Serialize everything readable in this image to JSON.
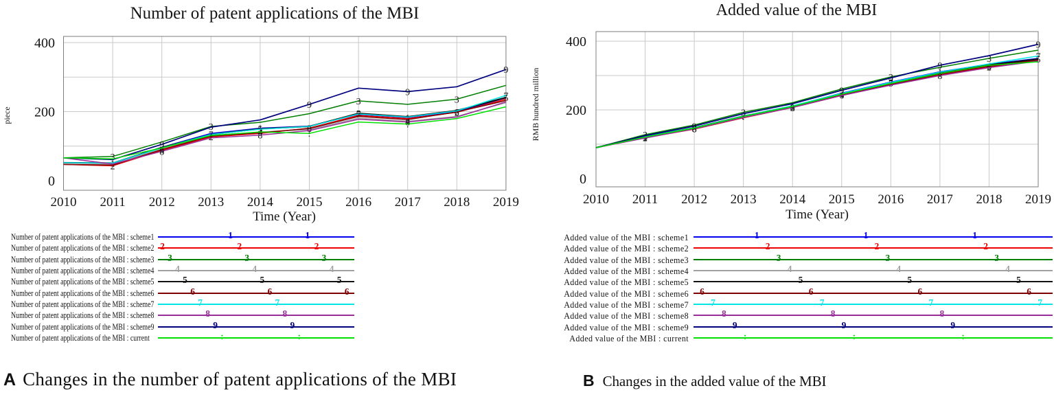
{
  "figure": {
    "captions": [
      {
        "letter": "A",
        "text": "Changes in the number of patent applications of the MBI"
      },
      {
        "letter": "B",
        "text": "Changes in the added value of the MBI"
      }
    ]
  },
  "chart_data": [
    {
      "id": "A",
      "type": "line",
      "title": "Number of patent applications of the MBI",
      "xlabel": "Time (Year)",
      "ylabel": "piece",
      "x": [
        2010,
        2011,
        2012,
        2013,
        2014,
        2015,
        2016,
        2017,
        2018,
        2019
      ],
      "ylim": [
        0,
        400
      ],
      "yticks": [
        0,
        200,
        400
      ],
      "grid": true,
      "legend_position": "below-left",
      "series": [
        {
          "name": "Number of patent applications of the MBI : scheme1",
          "marker": "1",
          "color": "#0000ee",
          "values": [
            52,
            51,
            97,
            137,
            152,
            158,
            192,
            183,
            200,
            240
          ],
          "marker_years": [
            2011,
            2014,
            2017
          ]
        },
        {
          "name": "Number of patent applications of the MBI : scheme2",
          "marker": "2",
          "color": "#ee0000",
          "values": [
            47,
            43,
            88,
            127,
            137,
            152,
            189,
            180,
            198,
            236
          ],
          "marker_years": [
            2011,
            2013,
            2015,
            2018
          ]
        },
        {
          "name": "Number of patent applications of the MBI : scheme3",
          "marker": "3",
          "color": "#007f00",
          "values": [
            66,
            70,
            112,
            157,
            169,
            194,
            231,
            221,
            236,
            276
          ],
          "marker_years": [
            2011,
            2013,
            2016,
            2018
          ]
        },
        {
          "name": "Number of patent applications of the MBI : scheme4",
          "marker": "4",
          "color": "#a0a0a0",
          "values": [
            47,
            47,
            92,
            130,
            141,
            148,
            181,
            172,
            186,
            226
          ],
          "marker_years": [
            2012,
            2014,
            2017
          ]
        },
        {
          "name": "Number of patent applications of the MBI : scheme5",
          "marker": "5",
          "color": "#111111",
          "values": [
            52,
            51,
            96,
            134,
            150,
            157,
            195,
            185,
            203,
            241
          ],
          "marker_years": [
            2014,
            2016,
            2019
          ]
        },
        {
          "name": "Number of patent applications of the MBI : scheme6",
          "marker": "6",
          "color": "#7f0000",
          "values": [
            47,
            45,
            90,
            129,
            139,
            151,
            186,
            177,
            199,
            232
          ],
          "marker_years": [
            2012,
            2015,
            2018
          ]
        },
        {
          "name": "Number of patent applications of the MBI : scheme7",
          "marker": "7",
          "color": "#00e5e5",
          "values": [
            52,
            51,
            95,
            134,
            149,
            157,
            193,
            184,
            202,
            247
          ],
          "marker_years": [
            2013,
            2016,
            2019
          ]
        },
        {
          "name": "Number of patent applications of the MBI : scheme8",
          "marker": "8",
          "color": "#992d99",
          "values": [
            66,
            48,
            85,
            124,
            132,
            145,
            178,
            170,
            184,
            228
          ],
          "marker_years": [
            2012,
            2014,
            2017
          ]
        },
        {
          "name": "Number of patent applications of the MBI : scheme9",
          "marker": "9",
          "color": "#00007f",
          "values": [
            66,
            61,
            105,
            155,
            176,
            221,
            268,
            258,
            272,
            322
          ],
          "marker_years": [
            2012,
            2015,
            2017,
            2019
          ]
        },
        {
          "name": "Number of patent applications of the MBI : current",
          "marker": ":",
          "color": "#00e000",
          "values": [
            66,
            63,
            95,
            131,
            141,
            137,
            170,
            164,
            180,
            214
          ],
          "marker_years": [
            2013,
            2015,
            2017
          ]
        }
      ]
    },
    {
      "id": "B",
      "type": "line",
      "title": "Added value of the MBI",
      "xlabel": "Time (Year)",
      "ylabel": "RMB hundred million",
      "x": [
        2010,
        2011,
        2012,
        2013,
        2014,
        2015,
        2016,
        2017,
        2018,
        2019
      ],
      "ylim": [
        0,
        400
      ],
      "yticks": [
        0,
        200,
        400
      ],
      "grid": true,
      "legend_position": "below-left",
      "series": [
        {
          "name": "Added value of the MBI : scheme1",
          "marker": "1",
          "color": "#0000ee",
          "values": [
            90,
            121,
            147,
            181,
            211,
            249,
            281,
            311,
            333,
            350
          ],
          "marker_years": [
            2011,
            2014,
            2017
          ]
        },
        {
          "name": "Added value of the MBI : scheme2",
          "marker": "2",
          "color": "#ee0000",
          "values": [
            90,
            119,
            144,
            177,
            207,
            242,
            273,
            302,
            325,
            346
          ],
          "marker_years": [
            2011,
            2014,
            2018
          ]
        },
        {
          "name": "Added value of the MBI : scheme3",
          "marker": "3",
          "color": "#007f00",
          "values": [
            90,
            128,
            156,
            193,
            221,
            261,
            296,
            324,
            350,
            374
          ],
          "marker_years": [
            2011,
            2013,
            2016,
            2018
          ]
        },
        {
          "name": "Added value of the MBI : scheme4",
          "marker": "4",
          "color": "#a0a0a0",
          "values": [
            90,
            121,
            146,
            180,
            209,
            245,
            276,
            305,
            329,
            344
          ],
          "marker_years": [
            2011,
            2015,
            2018
          ]
        },
        {
          "name": "Added value of the MBI : scheme5",
          "marker": "5",
          "color": "#111111",
          "values": [
            90,
            122,
            148,
            182,
            211,
            247,
            278,
            308,
            331,
            348
          ],
          "marker_years": [
            2014,
            2016,
            2019
          ]
        },
        {
          "name": "Added value of the MBI : scheme6",
          "marker": "6",
          "color": "#7f0000",
          "values": [
            90,
            120,
            145,
            178,
            208,
            243,
            274,
            304,
            327,
            345
          ],
          "marker_years": [
            2012,
            2015,
            2018
          ]
        },
        {
          "name": "Added value of the MBI : scheme7",
          "marker": "7",
          "color": "#00e5e5",
          "values": [
            90,
            122,
            148,
            182,
            212,
            248,
            280,
            310,
            334,
            357
          ],
          "marker_years": [
            2013,
            2016,
            2019
          ]
        },
        {
          "name": "Added value of the MBI : scheme8",
          "marker": "8",
          "color": "#992d99",
          "values": [
            90,
            118,
            145,
            178,
            207,
            242,
            272,
            300,
            323,
            342
          ],
          "marker_years": [
            2012,
            2014,
            2017
          ]
        },
        {
          "name": "Added value of the MBI : scheme9",
          "marker": "9",
          "color": "#00007f",
          "values": [
            90,
            125,
            153,
            189,
            218,
            257,
            293,
            330,
            358,
            391
          ],
          "marker_years": [
            2012,
            2015,
            2017,
            2019
          ]
        },
        {
          "name": "Added value of the MBI : current",
          "marker": ":",
          "color": "#00e000",
          "values": [
            90,
            121,
            147,
            181,
            210,
            246,
            277,
            306,
            330,
            340
          ],
          "marker_years": [
            2013,
            2015,
            2017
          ]
        }
      ]
    }
  ]
}
